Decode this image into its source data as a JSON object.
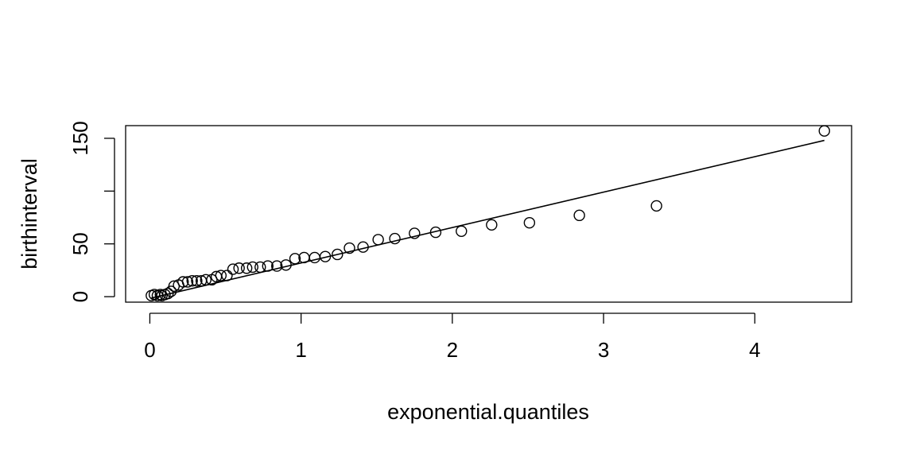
{
  "chart_data": {
    "type": "scatter",
    "title": "",
    "xlabel": "exponential.quantiles",
    "ylabel": "birthinterval",
    "xlim": [
      -0.16,
      4.64
    ],
    "ylim": [
      -5.2,
      162
    ],
    "xticks": [
      0,
      1,
      2,
      3,
      4
    ],
    "xtick_labels": [
      "0",
      "1",
      "2",
      "3",
      "4"
    ],
    "yticks": [
      0,
      50,
      100,
      150
    ],
    "ytick_labels": [
      "0",
      "50",
      "",
      "150"
    ],
    "grid": false,
    "legend": "none",
    "points": [
      [
        0.01,
        1
      ],
      [
        0.03,
        2
      ],
      [
        0.05,
        1
      ],
      [
        0.07,
        2
      ],
      [
        0.08,
        1
      ],
      [
        0.1,
        2
      ],
      [
        0.12,
        3
      ],
      [
        0.14,
        5
      ],
      [
        0.16,
        10
      ],
      [
        0.19,
        11
      ],
      [
        0.22,
        14
      ],
      [
        0.25,
        14
      ],
      [
        0.28,
        15
      ],
      [
        0.31,
        15
      ],
      [
        0.34,
        15
      ],
      [
        0.37,
        16
      ],
      [
        0.41,
        16
      ],
      [
        0.44,
        19
      ],
      [
        0.47,
        20
      ],
      [
        0.51,
        20
      ],
      [
        0.55,
        26
      ],
      [
        0.59,
        27
      ],
      [
        0.64,
        27
      ],
      [
        0.68,
        28
      ],
      [
        0.73,
        28
      ],
      [
        0.78,
        29
      ],
      [
        0.84,
        29
      ],
      [
        0.9,
        30
      ],
      [
        0.96,
        36
      ],
      [
        1.02,
        37
      ],
      [
        1.09,
        37
      ],
      [
        1.16,
        38
      ],
      [
        1.24,
        40
      ],
      [
        1.32,
        46
      ],
      [
        1.41,
        47
      ],
      [
        1.51,
        54
      ],
      [
        1.62,
        55
      ],
      [
        1.75,
        60
      ],
      [
        1.89,
        61
      ],
      [
        2.06,
        62
      ],
      [
        2.26,
        68
      ],
      [
        2.51,
        70
      ],
      [
        2.84,
        77
      ],
      [
        3.35,
        86
      ],
      [
        4.46,
        157
      ]
    ],
    "fit_line": {
      "x": [
        0.01,
        4.46
      ],
      "y": [
        -1.3,
        148
      ]
    }
  }
}
